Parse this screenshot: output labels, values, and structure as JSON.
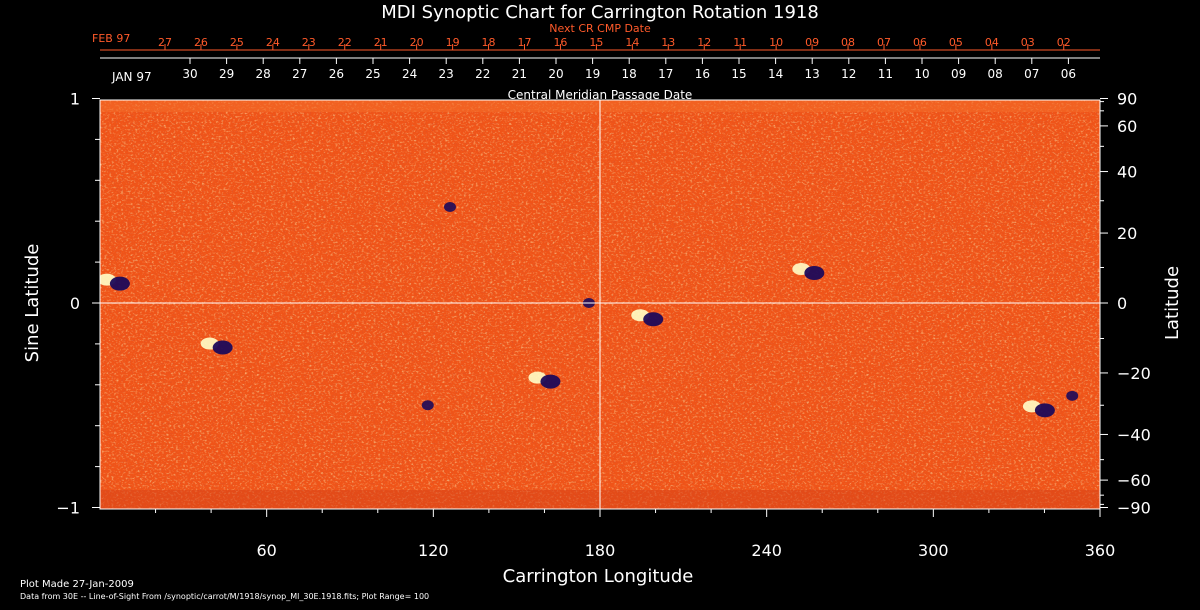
{
  "chart_data": {
    "type": "heatmap",
    "title": "MDI Synoptic Chart for Carrington Rotation 1918",
    "top_axis": {
      "next_label": "Next CR CMP Date",
      "next_month": "FEB 97",
      "next_days": [
        "27",
        "26",
        "25",
        "24",
        "23",
        "22",
        "21",
        "20",
        "19",
        "18",
        "17",
        "16",
        "15",
        "14",
        "13",
        "12",
        "11",
        "10",
        "09",
        "08",
        "07",
        "06",
        "05",
        "04",
        "03",
        "02"
      ],
      "cur_month": "JAN 97",
      "cur_days": [
        "30",
        "29",
        "28",
        "27",
        "26",
        "25",
        "24",
        "23",
        "22",
        "21",
        "20",
        "19",
        "18",
        "17",
        "16",
        "15",
        "14",
        "13",
        "12",
        "11",
        "10",
        "09",
        "08",
        "07",
        "06"
      ],
      "label": "Central Meridian Passage Date"
    },
    "xlabel": "Carrington Longitude",
    "xlim": [
      0,
      360
    ],
    "x_ticks": [
      60,
      120,
      180,
      240,
      300,
      360
    ],
    "ylabel_left": "Sine Latitude",
    "y_left_ticks": [
      "1",
      "0",
      "−1"
    ],
    "ylabel_right": "Latitude",
    "y_right_ticks": [
      90,
      60,
      40,
      20,
      0,
      -20,
      -40,
      -60,
      -90
    ],
    "y_right_tick_labels": [
      "90",
      "60",
      "40",
      "20",
      "0",
      "−20",
      "−40",
      "−60",
      "−90"
    ],
    "active_regions": [
      {
        "lon": 5,
        "lat": 6,
        "polarity": "mixed"
      },
      {
        "lon": 42,
        "lat": -12,
        "polarity": "mixed"
      },
      {
        "lon": 126,
        "lat": 28,
        "polarity": "negative"
      },
      {
        "lon": 118,
        "lat": -30,
        "polarity": "negative"
      },
      {
        "lon": 160,
        "lat": -22,
        "polarity": "mixed"
      },
      {
        "lon": 176,
        "lat": 0,
        "polarity": "negative"
      },
      {
        "lon": 197,
        "lat": -4,
        "polarity": "mixed"
      },
      {
        "lon": 255,
        "lat": 9,
        "polarity": "mixed"
      },
      {
        "lon": 338,
        "lat": -31,
        "polarity": "mixed"
      },
      {
        "lon": 350,
        "lat": -27,
        "polarity": "negative"
      }
    ],
    "colors": {
      "background": "#000000",
      "field": "#f05418",
      "positive": "#ffffc8",
      "negative": "#1c0a5a",
      "grid": "#ffffff",
      "accent": "#ff5a2a"
    }
  },
  "footer": {
    "plot_made": "Plot Made 27-Jan-2009",
    "data_from": "Data from 30E -- Line-of-Sight From /synoptic/carrot/M/1918/synop_Ml_30E.1918.fits; Plot Range= 100"
  }
}
